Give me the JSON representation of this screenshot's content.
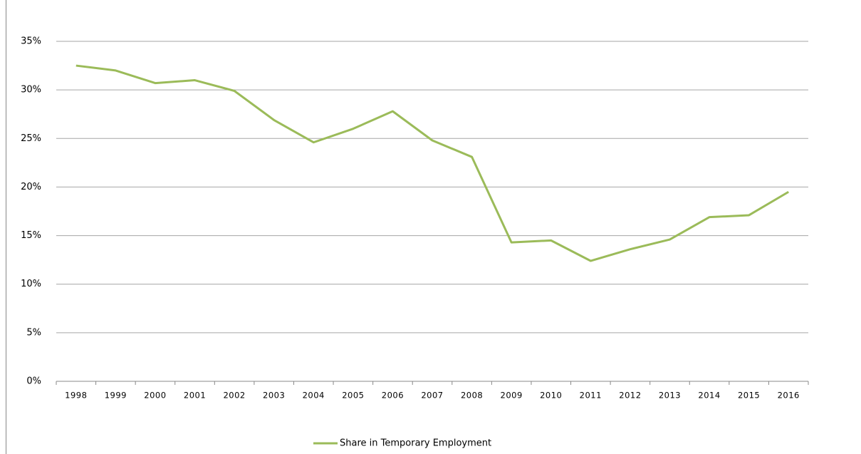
{
  "chart_data": {
    "type": "line",
    "categories": [
      "1998",
      "1999",
      "2000",
      "2001",
      "2002",
      "2003",
      "2004",
      "2005",
      "2006",
      "2007",
      "2008",
      "2009",
      "2010",
      "2011",
      "2012",
      "2013",
      "2014",
      "2015",
      "2016"
    ],
    "series": [
      {
        "name": "Share in Temporary Employment",
        "color": "#9bbb59",
        "values": [
          32.5,
          32.0,
          30.7,
          31.0,
          29.9,
          26.9,
          24.6,
          26.0,
          27.8,
          24.8,
          23.1,
          14.3,
          14.5,
          12.4,
          13.6,
          14.6,
          16.9,
          17.1,
          19.5
        ]
      }
    ],
    "ylim": [
      0,
      35
    ],
    "yticks": [
      {
        "value": 0,
        "label": "0%"
      },
      {
        "value": 5,
        "label": "5%"
      },
      {
        "value": 10,
        "label": "10%"
      },
      {
        "value": 15,
        "label": "15%"
      },
      {
        "value": 20,
        "label": "20%"
      },
      {
        "value": 25,
        "label": "25%"
      },
      {
        "value": 30,
        "label": "30%"
      },
      {
        "value": 35,
        "label": "35%"
      }
    ],
    "grid": true,
    "legend": "bottom"
  }
}
